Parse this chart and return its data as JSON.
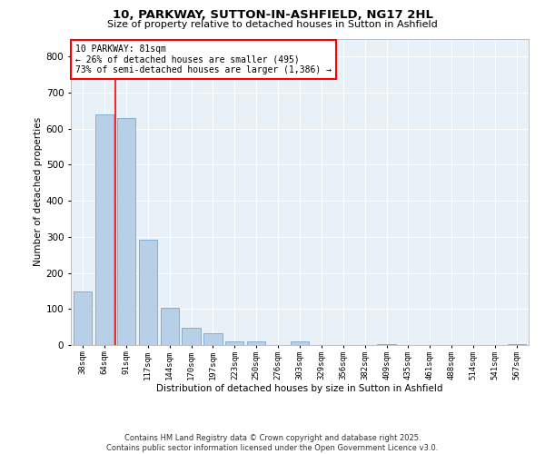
{
  "title1": "10, PARKWAY, SUTTON-IN-ASHFIELD, NG17 2HL",
  "title2": "Size of property relative to detached houses in Sutton in Ashfield",
  "xlabel": "Distribution of detached houses by size in Sutton in Ashfield",
  "ylabel": "Number of detached properties",
  "categories": [
    "38sqm",
    "64sqm",
    "91sqm",
    "117sqm",
    "144sqm",
    "170sqm",
    "197sqm",
    "223sqm",
    "250sqm",
    "276sqm",
    "303sqm",
    "329sqm",
    "356sqm",
    "382sqm",
    "409sqm",
    "435sqm",
    "461sqm",
    "488sqm",
    "514sqm",
    "541sqm",
    "567sqm"
  ],
  "values": [
    148,
    640,
    630,
    292,
    103,
    48,
    32,
    11,
    10,
    0,
    11,
    0,
    0,
    0,
    3,
    0,
    0,
    0,
    0,
    0,
    2
  ],
  "bar_color": "#b8cfe8",
  "bar_edge_color": "#6699cc",
  "vline_x_index": 1.5,
  "vline_color": "red",
  "annotation_text_line1": "10 PARKWAY: 81sqm",
  "annotation_text_line2": "← 26% of detached houses are smaller (495)",
  "annotation_text_line3": "73% of semi-detached houses are larger (1,386) →",
  "annotation_box_color": "white",
  "annotation_box_edge": "red",
  "ylim": [
    0,
    850
  ],
  "yticks": [
    0,
    100,
    200,
    300,
    400,
    500,
    600,
    700,
    800
  ],
  "background_color": "#e8f0f8",
  "grid_color": "white",
  "footer": "Contains HM Land Registry data © Crown copyright and database right 2025.\nContains public sector information licensed under the Open Government Licence v3.0."
}
